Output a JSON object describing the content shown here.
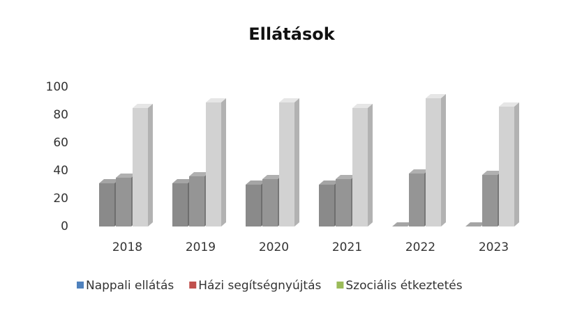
{
  "chart_data": {
    "type": "bar3d",
    "title": "Ellátások",
    "categories": [
      "2018",
      "2019",
      "2020",
      "2021",
      "2022",
      "2023"
    ],
    "series": [
      {
        "name": "Nappali ellátás",
        "color": "#4f81bd",
        "values": [
          31,
          31,
          30,
          30,
          0,
          0
        ]
      },
      {
        "name": "Házi segítségnyújtás",
        "color": "#c0504d",
        "values": [
          35,
          36,
          34,
          34,
          38,
          37
        ]
      },
      {
        "name": "Szociális étkeztetés",
        "color": "#9bbb59",
        "values": [
          85,
          89,
          89,
          85,
          92,
          86
        ]
      }
    ],
    "ylim": [
      0,
      100
    ],
    "yticks": [
      0,
      20,
      40,
      60,
      80,
      100
    ],
    "grid": false,
    "legend": "bottom"
  }
}
